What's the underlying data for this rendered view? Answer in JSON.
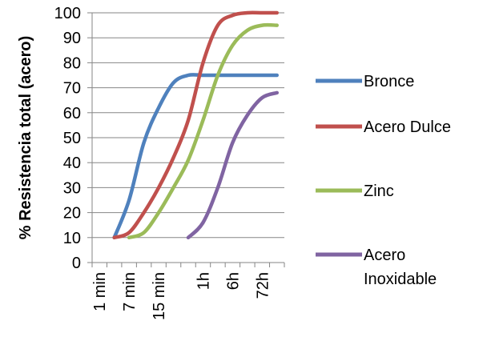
{
  "chart_data": {
    "type": "line",
    "title": "",
    "xlabel": "",
    "ylabel": "% Resistencia total (acero)",
    "ylim": [
      0,
      100
    ],
    "yticks": [
      0,
      10,
      20,
      30,
      40,
      50,
      60,
      70,
      80,
      90,
      100
    ],
    "categories": [
      "1 min",
      "",
      "7 min",
      "",
      "15 min",
      "",
      "",
      "1h",
      "",
      "6h",
      "",
      "72h",
      ""
    ],
    "grid": true,
    "legend_position": "right",
    "series": [
      {
        "name": "Bronce",
        "color": "#4F81BD",
        "values": [
          null,
          10,
          25,
          48,
          62,
          72,
          75,
          75,
          75,
          75,
          75,
          75,
          75
        ]
      },
      {
        "name": "Acero Dulce",
        "color": "#C0504D",
        "values": [
          null,
          10,
          12,
          20,
          30,
          42,
          57,
          80,
          95,
          99,
          100,
          100,
          100
        ]
      },
      {
        "name": "Zinc",
        "color": "#9BBB59",
        "values": [
          null,
          null,
          10,
          12,
          20,
          30,
          41,
          57,
          75,
          87,
          93,
          95,
          95
        ]
      },
      {
        "name": "Acero Inoxidable",
        "color": "#8064A2",
        "values": [
          null,
          null,
          null,
          null,
          null,
          null,
          10,
          16,
          30,
          48,
          59,
          66,
          68
        ]
      }
    ],
    "legend_lines": {
      "Bronce": [
        "Bronce"
      ],
      "Acero Dulce": [
        "Acero Dulce"
      ],
      "Zinc": [
        "Zinc"
      ],
      "Acero Inoxidable": [
        "Acero",
        "Inoxidable"
      ]
    }
  }
}
